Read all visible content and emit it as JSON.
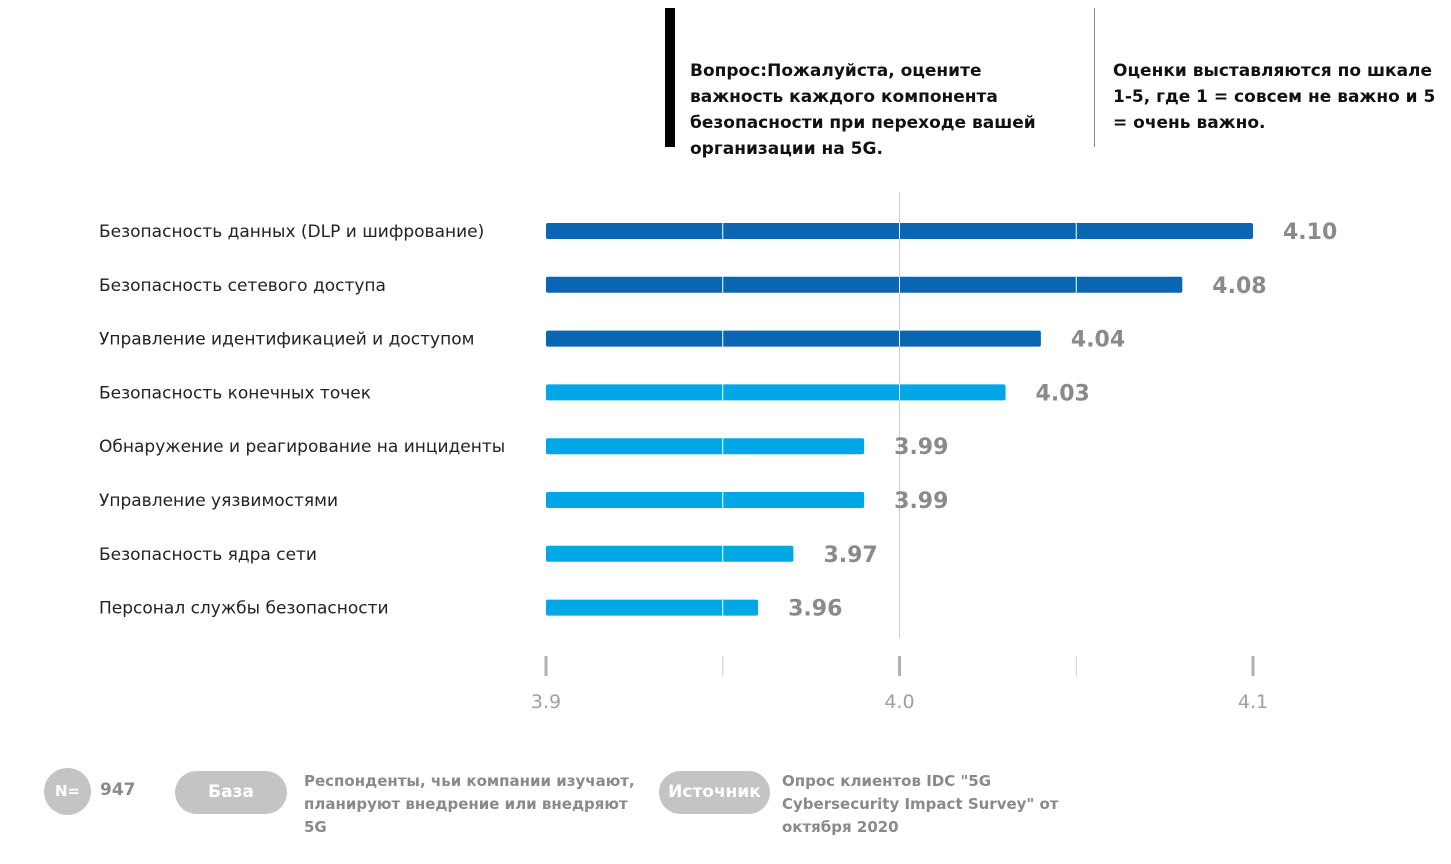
{
  "header": {
    "question": "Вопрос:Пожалуйста, оцените важность каждого компонента безопасности при переходе вашей организации на 5G.",
    "scale_note": "Оценки выставляются по шкале 1-5, где 1 = совсем не важно и 5 = очень важно."
  },
  "footer": {
    "n_label": "N=",
    "n_value": "947",
    "base_label": "База",
    "base_text": "Респонденты, чьи компании изучают, планируют внедрение или внедряют 5G",
    "source_label": "Источник",
    "source_text": "Опрос клиентов IDC \"5G Cybersecurity Impact Survey\" от октября 2020"
  },
  "colors": {
    "dark_blue": "#0a66b3",
    "light_blue": "#00a7e6",
    "value_label": "#8a8a8a",
    "category_label": "#222222",
    "axis": "#aaaaaa"
  },
  "chart_data": {
    "type": "bar",
    "orientation": "horizontal",
    "categories": [
      "Безопасность данных (DLP и шифрование)",
      "Безопасность сетевого доступа",
      "Управление идентификацией и доступом",
      "Безопасность конечных точек",
      "Обнаружение и реагирование на инциденты",
      "Управление уязвимостями",
      "Безопасность ядра сети",
      "Персонал службы безопасности"
    ],
    "values": [
      4.1,
      4.08,
      4.04,
      4.03,
      3.99,
      3.99,
      3.97,
      3.96
    ],
    "value_labels": [
      "4.10",
      "4.08",
      "4.04",
      "4.03",
      "3.99",
      "3.99",
      "3.97",
      "3.96"
    ],
    "bar_colors": [
      "dark",
      "dark",
      "dark",
      "light",
      "light",
      "light",
      "light",
      "light"
    ],
    "xlim": [
      3.9,
      4.1
    ],
    "xticks": [
      3.9,
      3.95,
      4.0,
      4.05,
      4.1
    ],
    "xtick_labels": [
      "3.9",
      "",
      "4.0",
      "",
      "4.1"
    ],
    "gridline_at": 4.0
  }
}
